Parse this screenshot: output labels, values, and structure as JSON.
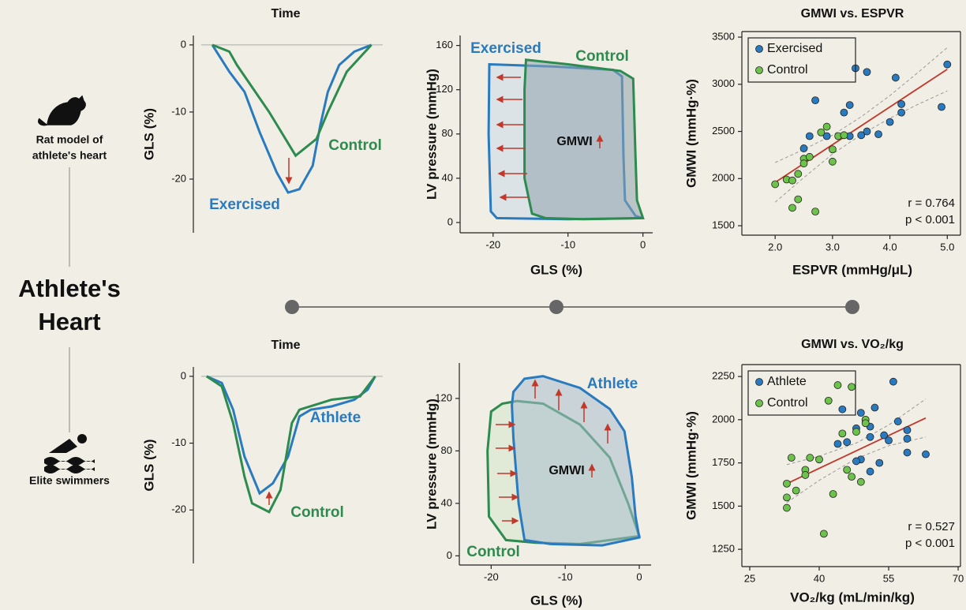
{
  "labels": {
    "rat_model": [
      "Rat model of",
      "athlete's heart"
    ],
    "title": [
      "Athlete's",
      "Heart"
    ],
    "swimmers": "Elite swimmers"
  },
  "chart_data": [
    {
      "type": "line",
      "xlabel": "Time",
      "ylabel": "GLS (%)",
      "xlim": [
        0,
        1
      ],
      "ylim": [
        -28,
        1.4
      ],
      "yticks": [
        0,
        -10,
        -20
      ],
      "series": [
        {
          "name": "Exercised",
          "color": "#2a7abf",
          "x": [
            0.1,
            0.19,
            0.27,
            0.35,
            0.44,
            0.5,
            0.56,
            0.63,
            0.67,
            0.71,
            0.77,
            0.85,
            0.94
          ],
          "values": [
            0,
            -4,
            -7,
            -13,
            -19,
            -22,
            -21.5,
            -18,
            -12,
            -7,
            -3,
            -1,
            0
          ]
        },
        {
          "name": "Control",
          "color": "#2e8b4f",
          "x": [
            0.1,
            0.19,
            0.23,
            0.4,
            0.54,
            0.65,
            0.71,
            0.81,
            0.94
          ],
          "values": [
            0,
            -1,
            -3,
            -10,
            -16.5,
            -14,
            -10,
            -4,
            0
          ]
        }
      ]
    },
    {
      "type": "loop",
      "xlabel": "GLS (%)",
      "ylabel": "LV pressure (mmHg)",
      "xlim": [
        -24.4,
        1.3
      ],
      "ylim": [
        -9.3,
        169
      ],
      "xticks": [
        -20,
        -10,
        0
      ],
      "yticks": [
        0,
        40,
        80,
        120,
        160
      ],
      "annotation": "GMWI",
      "series": [
        {
          "name": "Exercised",
          "color": "#2a7abf",
          "fill": "#c9d8ea",
          "x": [
            -20.5,
            -12,
            -4,
            -2.8,
            -2.6,
            -2.4,
            -1,
            0,
            -10,
            -19.5,
            -20.3,
            -20.6,
            -20.5
          ],
          "values": [
            143,
            141,
            138,
            132,
            60,
            20,
            6,
            4,
            3,
            4,
            10,
            80,
            143
          ]
        },
        {
          "name": "Control",
          "color": "#2e8b4f",
          "fill": "#8fa2ad",
          "x": [
            -15.6,
            -10,
            -3,
            -1.3,
            -1,
            -0.8,
            0,
            -8,
            -13,
            -14.8,
            -15.8,
            -15.8,
            -15.6
          ],
          "values": [
            147,
            143,
            137,
            130,
            60,
            20,
            4,
            3,
            4,
            8,
            40,
            120,
            147
          ]
        }
      ]
    },
    {
      "type": "scatter",
      "title": "GMWI vs. ESPVR",
      "xlabel": "ESPVR (mmHg/μL)",
      "ylabel": "GMWI (mmHg·%)",
      "xlim": [
        1.42,
        5.23
      ],
      "ylim": [
        1400,
        3559
      ],
      "xticks": [
        {
          "value": 2,
          "label": "2.0"
        },
        {
          "value": 3,
          "label": "3.0"
        },
        {
          "value": 4,
          "label": "4.0"
        },
        {
          "value": 5,
          "label": "5.0"
        }
      ],
      "yticks": [
        1500,
        2000,
        2500,
        3000,
        3500
      ],
      "legend": "upper left",
      "series": [
        {
          "name": "Exercised",
          "color": "#2a7abf",
          "x": [
            3.4,
            3.6,
            4.1,
            5.0,
            2.7,
            3.3,
            3.2,
            4.2,
            4.2,
            4.0,
            4.9,
            3.5,
            3.6,
            3.8,
            3.3,
            2.9,
            2.5,
            2.6
          ],
          "values": [
            3170,
            3130,
            3070,
            3210,
            2830,
            2780,
            2700,
            2790,
            2700,
            2600,
            2760,
            2460,
            2500,
            2470,
            2450,
            2450,
            2320,
            2450
          ]
        },
        {
          "name": "Control",
          "color": "#6cc24a",
          "x": [
            2.2,
            2.3,
            2.4,
            2.5,
            2.6,
            2.8,
            2.9,
            3.0,
            3.0,
            3.1,
            2.4,
            2.3,
            2.7,
            2.0,
            2.5,
            3.2
          ],
          "values": [
            1990,
            1980,
            2050,
            2210,
            2230,
            2490,
            2550,
            2310,
            2180,
            2450,
            1780,
            1690,
            1650,
            1940,
            2160,
            2460
          ]
        }
      ],
      "fit": {
        "x": [
          2.0,
          5.0
        ],
        "values": [
          1960,
          3160
        ]
      },
      "ci": {
        "x": [
          2.0,
          2.5,
          3.0,
          3.5,
          4.0,
          4.5,
          5.0
        ],
        "lower": [
          1750,
          2010,
          2260,
          2465,
          2640,
          2790,
          2930
        ],
        "upper": [
          2170,
          2310,
          2460,
          2655,
          2880,
          3130,
          3390
        ]
      },
      "annotations": [
        "r = 0.764",
        "p < 0.001"
      ]
    },
    {
      "type": "line",
      "xlabel": "Time",
      "ylabel": "GLS (%)",
      "xlim": [
        0,
        1
      ],
      "ylim": [
        -28,
        1.4
      ],
      "yticks": [
        0,
        -10,
        -20
      ],
      "series": [
        {
          "name": "Athlete",
          "color": "#2a7abf",
          "x": [
            0.07,
            0.15,
            0.21,
            0.27,
            0.35,
            0.42,
            0.5,
            0.56,
            0.62,
            0.73,
            0.85,
            0.92,
            0.96
          ],
          "values": [
            0,
            -1,
            -5,
            -12,
            -17.5,
            -16,
            -12,
            -6,
            -5,
            -4.5,
            -3.5,
            -2,
            0
          ]
        },
        {
          "name": "Control",
          "color": "#2e8b4f",
          "x": [
            0.07,
            0.15,
            0.21,
            0.27,
            0.31,
            0.4,
            0.46,
            0.52,
            0.56,
            0.73,
            0.88,
            0.96
          ],
          "values": [
            0,
            -1.5,
            -7,
            -15,
            -19,
            -20.3,
            -17,
            -7,
            -5,
            -3.5,
            -3,
            0
          ]
        }
      ]
    },
    {
      "type": "loop",
      "xlabel": "GLS (%)",
      "ylabel": "LV pressure (mmHg)",
      "xlim": [
        -24.3,
        1.6
      ],
      "ylim": [
        -7,
        147
      ],
      "xticks": [
        -20,
        -10,
        0
      ],
      "yticks": [
        0,
        40,
        80,
        120
      ],
      "annotation": "GMWI",
      "series": [
        {
          "name": "Control",
          "color": "#2e8b4f",
          "fill": "#d3e5cc",
          "x": [
            -20,
            -18.5,
            -16.5,
            -13,
            -8,
            -4,
            -1.5,
            0,
            -8,
            -14,
            -18,
            -20.3,
            -20.5,
            -20
          ],
          "values": [
            110,
            116,
            118,
            116,
            100,
            75,
            40,
            15,
            9,
            10,
            12,
            30,
            80,
            110
          ]
        },
        {
          "name": "Athlete",
          "color": "#2a7abf",
          "fill": "#a9bccd",
          "x": [
            -17,
            -15.5,
            -13,
            -8,
            -4,
            -2,
            -1,
            -0.5,
            0,
            -5,
            -12,
            -15.5,
            -16.3,
            -17,
            -17.2,
            -17
          ],
          "values": [
            125,
            135,
            137,
            128,
            112,
            95,
            60,
            30,
            14,
            8,
            9,
            12,
            40,
            90,
            115,
            125
          ]
        }
      ]
    },
    {
      "type": "scatter",
      "title": "GMWI vs. VO₂/kg",
      "xlabel": "VO₂/kg (mL/min/kg)",
      "ylabel": "GMWI (mmHg·%)",
      "xlim": [
        23.3,
        70.5
      ],
      "ylim": [
        1150,
        2319
      ],
      "xticks": [
        25,
        40,
        55,
        70
      ],
      "yticks": [
        1250,
        1500,
        1750,
        2000,
        2250
      ],
      "legend": "upper left",
      "series": [
        {
          "name": "Athlete",
          "color": "#2a7abf",
          "x": [
            56,
            45,
            49,
            52,
            50,
            48,
            51,
            54,
            57,
            59,
            59,
            63,
            59,
            55,
            51,
            53,
            49,
            51,
            48,
            44,
            46
          ],
          "values": [
            2220,
            2060,
            2040,
            2070,
            2000,
            1950,
            1960,
            1910,
            1990,
            1940,
            1890,
            1800,
            1810,
            1880,
            1900,
            1750,
            1770,
            1700,
            1760,
            1860,
            1870
          ]
        },
        {
          "name": "Control",
          "color": "#6cc24a",
          "x": [
            44,
            47,
            42,
            50,
            48,
            45,
            38,
            40,
            34,
            37,
            37,
            35,
            33,
            33,
            33,
            43,
            41,
            46,
            47,
            49,
            50
          ],
          "values": [
            2200,
            2190,
            2110,
            2000,
            1930,
            1920,
            1780,
            1770,
            1780,
            1710,
            1680,
            1590,
            1550,
            1490,
            1630,
            1570,
            1340,
            1710,
            1670,
            1640,
            1980
          ]
        }
      ],
      "fit": {
        "x": [
          33,
          63
        ],
        "values": [
          1630,
          2010
        ]
      },
      "ci": {
        "x": [
          33,
          40,
          48,
          55,
          63
        ],
        "lower": [
          1520,
          1649,
          1775,
          1849,
          1900
        ],
        "upper": [
          1740,
          1789,
          1865,
          1969,
          2120
        ]
      },
      "annotations": [
        "r = 0.527",
        "p < 0.001"
      ]
    }
  ]
}
